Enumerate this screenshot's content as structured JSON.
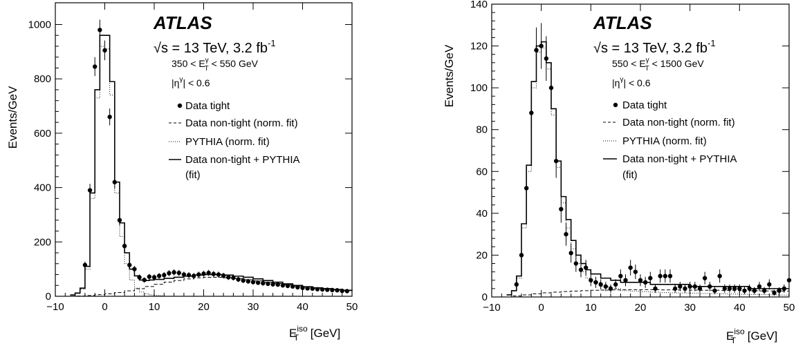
{
  "chart_data": [
    {
      "type": "line",
      "panel": "left",
      "xlabel_main": "E",
      "xlabel_sub": "T",
      "xlabel_sup": "iso",
      "xlabel_unit": " [GeV]",
      "ylabel": "Events/GeV",
      "xlim": [
        -10,
        50
      ],
      "ylim": [
        0,
        1080
      ],
      "xticks": [
        -10,
        0,
        10,
        20,
        30,
        40,
        50
      ],
      "yticks": [
        0,
        200,
        400,
        600,
        800,
        1000
      ],
      "annotations": {
        "atlas": "ATLAS",
        "energy_sqrt": "√s",
        "energy_text": " = 13 TeV, 3.2 fb",
        "energy_sup": "-1",
        "cut1_pre": "350 < E",
        "cut1_sub": "T",
        "cut1_sup": "γ",
        "cut1_post": " < 550 GeV",
        "cut2_pre": "|η",
        "cut2_sup": "γ",
        "cut2_post": "| < 0.6"
      },
      "legend": {
        "data": "Data tight",
        "nontight": "Data non-tight (norm. fit)",
        "pythia": "PYTHIA (norm. fit)",
        "sum_line1": "Data non-tight + PYTHIA",
        "sum_line2": "(fit)"
      },
      "series": [
        {
          "name": "Data tight",
          "style": "points",
          "x": [
            -4,
            -3,
            -2,
            -1,
            0,
            1,
            2,
            3,
            4,
            5,
            6,
            7,
            8,
            9,
            10,
            11,
            12,
            13,
            14,
            15,
            16,
            17,
            18,
            19,
            20,
            21,
            22,
            23,
            24,
            25,
            26,
            27,
            28,
            29,
            30,
            31,
            32,
            33,
            34,
            35,
            36,
            37,
            38,
            39,
            40,
            41,
            42,
            43,
            44,
            45,
            46,
            47,
            48,
            49
          ],
          "y": [
            115,
            390,
            845,
            980,
            905,
            660,
            420,
            280,
            185,
            115,
            100,
            70,
            60,
            72,
            70,
            75,
            78,
            85,
            88,
            86,
            80,
            78,
            75,
            80,
            83,
            86,
            82,
            80,
            76,
            70,
            68,
            62,
            58,
            55,
            52,
            50,
            48,
            46,
            44,
            43,
            40,
            38,
            36,
            33,
            31,
            29,
            28,
            26,
            25,
            24,
            23,
            22,
            20,
            19
          ]
        },
        {
          "name": "Data non-tight + PYTHIA (fit)",
          "style": "solid",
          "x": [
            -7,
            -6,
            -5,
            -4,
            -3,
            -2,
            -1,
            0,
            1,
            2,
            3,
            4,
            5,
            6,
            7,
            8,
            9,
            10,
            12,
            14,
            16,
            18,
            20,
            22,
            24,
            26,
            28,
            30,
            32,
            34,
            36,
            38,
            40,
            42,
            44,
            46,
            48,
            50
          ],
          "y": [
            5,
            12,
            30,
            110,
            380,
            760,
            960,
            960,
            790,
            420,
            270,
            160,
            100,
            75,
            60,
            58,
            60,
            62,
            66,
            70,
            74,
            78,
            80,
            80,
            78,
            74,
            70,
            64,
            58,
            52,
            46,
            40,
            35,
            31,
            28,
            25,
            22,
            20
          ]
        },
        {
          "name": "PYTHIA (norm. fit)",
          "style": "dotted",
          "x": [
            -7,
            -6,
            -5,
            -4,
            -3,
            -2,
            -1,
            0,
            1,
            2,
            3,
            4,
            5,
            6,
            7,
            8,
            9,
            10,
            11,
            12
          ],
          "y": [
            4,
            10,
            26,
            100,
            360,
            730,
            920,
            910,
            740,
            380,
            220,
            120,
            60,
            30,
            16,
            9,
            5,
            3,
            2,
            1
          ]
        },
        {
          "name": "Data non-tight (norm. fit)",
          "style": "dashed",
          "x": [
            -10,
            -6,
            -4,
            -2,
            0,
            2,
            4,
            6,
            8,
            10,
            12,
            14,
            16,
            18,
            20,
            22,
            24,
            26,
            28,
            30,
            32,
            34,
            36,
            38,
            40,
            42,
            44,
            46,
            48,
            50
          ],
          "y": [
            0,
            1,
            3,
            6,
            9,
            14,
            20,
            28,
            36,
            44,
            52,
            58,
            64,
            68,
            70,
            70,
            68,
            65,
            61,
            57,
            52,
            47,
            42,
            38,
            34,
            30,
            27,
            24,
            21,
            19
          ]
        }
      ]
    },
    {
      "type": "line",
      "panel": "right",
      "xlabel_main": "E",
      "xlabel_sub": "T",
      "xlabel_sup": "iso",
      "xlabel_unit": " [GeV]",
      "ylabel": "Events/GeV",
      "xlim": [
        -10,
        50
      ],
      "ylim": [
        0,
        140
      ],
      "xticks": [
        -10,
        0,
        10,
        20,
        30,
        40,
        50
      ],
      "yticks": [
        0,
        20,
        40,
        60,
        80,
        100,
        120,
        140
      ],
      "annotations": {
        "atlas": "ATLAS",
        "energy_sqrt": "√s",
        "energy_text": " = 13 TeV, 3.2 fb",
        "energy_sup": "-1",
        "cut1_pre": "550 < E",
        "cut1_sub": "T",
        "cut1_sup": "γ",
        "cut1_post": " < 1500 GeV",
        "cut2_pre": "|η",
        "cut2_sup": "γ",
        "cut2_post": "| < 0.6"
      },
      "legend": {
        "data": "Data tight",
        "nontight": "Data non-tight (norm. fit)",
        "pythia": "PYTHIA (norm. fit)",
        "sum_line1": "Data non-tight + PYTHIA",
        "sum_line2": "(fit)"
      },
      "series": [
        {
          "name": "Data tight",
          "style": "points",
          "x": [
            -5,
            -4,
            -3,
            -2,
            -1,
            0,
            1,
            2,
            3,
            4,
            5,
            6,
            7,
            8,
            9,
            10,
            11,
            12,
            13,
            14,
            15,
            16,
            17,
            18,
            19,
            20,
            21,
            22,
            23,
            24,
            25,
            26,
            27,
            28,
            29,
            30,
            31,
            32,
            33,
            34,
            35,
            36,
            37,
            38,
            39,
            40,
            41,
            42,
            43,
            44,
            45,
            46,
            47,
            48,
            49,
            50
          ],
          "y": [
            6,
            20,
            52,
            88,
            118,
            120,
            114,
            100,
            65,
            42,
            30,
            21,
            16,
            13,
            14,
            8,
            7,
            6,
            5,
            4,
            6,
            10,
            8,
            14,
            12,
            8,
            7,
            9,
            4,
            10,
            10,
            10,
            4,
            5,
            4,
            5,
            5,
            4,
            9,
            5,
            3,
            10,
            4,
            4,
            4,
            4,
            3,
            4,
            3,
            5,
            3,
            6,
            2,
            3,
            4,
            8
          ]
        },
        {
          "name": "Data non-tight + PYTHIA (fit)",
          "style": "solid",
          "x": [
            -7,
            -6,
            -5,
            -4,
            -3,
            -2,
            -1,
            0,
            1,
            2,
            3,
            4,
            5,
            6,
            7,
            8,
            9,
            10,
            12,
            14,
            16,
            18,
            20,
            22,
            24,
            26,
            28,
            30,
            32,
            34,
            36,
            38,
            40,
            42,
            44,
            46,
            48,
            50
          ],
          "y": [
            1,
            3,
            10,
            35,
            63,
            103,
            120,
            122,
            112,
            90,
            65,
            48,
            37,
            27,
            20,
            16,
            13,
            11,
            9,
            8,
            7,
            7,
            7,
            6,
            6,
            6,
            6,
            5,
            5,
            5,
            5,
            5,
            5,
            4,
            4,
            4,
            4,
            4
          ]
        },
        {
          "name": "PYTHIA (norm. fit)",
          "style": "dotted",
          "x": [
            -7,
            -6,
            -5,
            -4,
            -3,
            -2,
            -1,
            0,
            1,
            2,
            3,
            4,
            5,
            6,
            7,
            8,
            9,
            10,
            12,
            14,
            16,
            18,
            20,
            22,
            24,
            26,
            28,
            30,
            32,
            34,
            36,
            38,
            40,
            42,
            44,
            46,
            48,
            50
          ],
          "y": [
            1,
            3,
            9,
            33,
            60,
            100,
            117,
            119,
            109,
            87,
            62,
            45,
            33,
            23,
            16,
            12,
            9,
            7,
            5,
            4,
            3,
            2.8,
            2.5,
            2.3,
            2.1,
            2,
            1.9,
            1.8,
            1.7,
            1.6,
            1.5,
            1.4,
            1.3,
            1.2,
            1.1,
            1,
            0.9,
            0.8
          ]
        },
        {
          "name": "Data non-tight (norm. fit)",
          "style": "dashed",
          "x": [
            -10,
            -6,
            -4,
            -2,
            0,
            2,
            4,
            6,
            8,
            10,
            12,
            14,
            16,
            18,
            20,
            22,
            24,
            26,
            28,
            30,
            32,
            34,
            36,
            38,
            40,
            42,
            44,
            46,
            48,
            50
          ],
          "y": [
            0,
            0.5,
            1,
            1.5,
            2,
            2.3,
            2.6,
            2.8,
            3,
            3.2,
            3.3,
            3.4,
            3.5,
            3.5,
            3.5,
            3.5,
            3.4,
            3.4,
            3.3,
            3.3,
            3.2,
            3.2,
            3.1,
            3.1,
            3,
            3,
            2.9,
            2.9,
            2.8,
            2.8
          ]
        }
      ]
    }
  ]
}
